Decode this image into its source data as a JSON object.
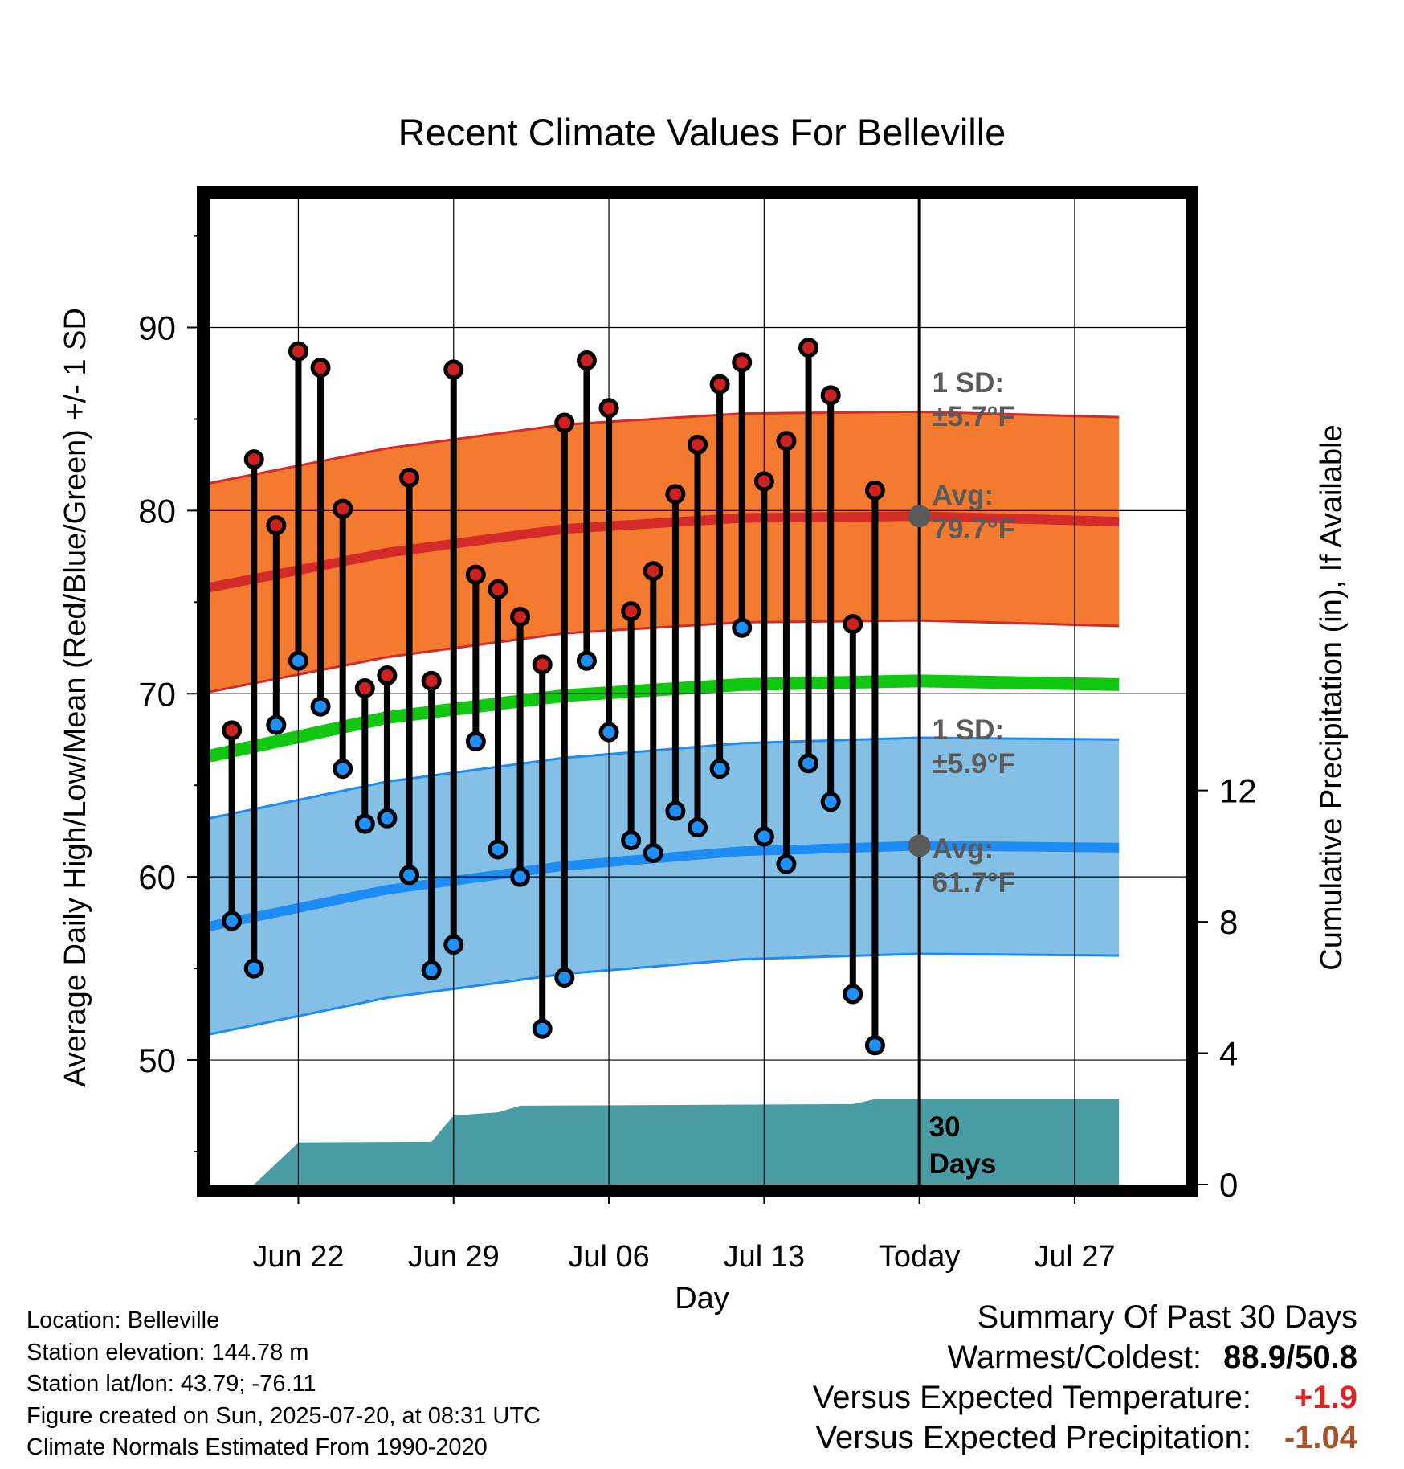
{
  "chart_data": {
    "type": "line",
    "title": "Recent Climate Values For Belleville",
    "xlabel": "Day",
    "ylabel": "Average Daily High/Low/Mean (Red/Blue/Green) +/- 1 SD",
    "y2label": "Cumulative Precipitation (in), If Available",
    "x_range_days": [
      -1,
      43
    ],
    "ylim": [
      43.2,
      97
    ],
    "y2lim": [
      0,
      30
    ],
    "x_ticks": [
      {
        "day": 3,
        "label": "Jun 22"
      },
      {
        "day": 10,
        "label": "Jun 29"
      },
      {
        "day": 17,
        "label": "Jul 06"
      },
      {
        "day": 24,
        "label": "Jul 13"
      },
      {
        "day": 31,
        "label": "Today"
      },
      {
        "day": 38,
        "label": "Jul 27"
      }
    ],
    "y_ticks": [
      50,
      60,
      70,
      80,
      90
    ],
    "y2_ticks": [
      0,
      4,
      8,
      12
    ],
    "today_day": 31,
    "grid": true,
    "daily_high": [
      68.0,
      82.8,
      79.2,
      88.7,
      87.8,
      80.1,
      70.3,
      71.0,
      81.8,
      70.7,
      87.7,
      76.5,
      75.7,
      74.2,
      71.6,
      84.8,
      88.2,
      85.6,
      74.5,
      76.7,
      80.9,
      83.6,
      86.9,
      88.1,
      81.6,
      83.8,
      88.9,
      86.3,
      73.8,
      81.1
    ],
    "daily_low": [
      57.6,
      55.0,
      68.3,
      71.8,
      69.3,
      65.9,
      62.9,
      63.2,
      60.1,
      54.9,
      56.3,
      67.4,
      61.5,
      60.0,
      51.7,
      54.5,
      71.8,
      67.9,
      62.0,
      61.3,
      63.6,
      62.7,
      65.9,
      73.6,
      62.2,
      60.7,
      66.2,
      64.1,
      53.6,
      50.8
    ],
    "normal_high": [
      {
        "day": -1,
        "value": 75.8
      },
      {
        "day": 7,
        "value": 77.7
      },
      {
        "day": 15,
        "value": 79.0
      },
      {
        "day": 23,
        "value": 79.6
      },
      {
        "day": 31,
        "value": 79.7
      },
      {
        "day": 40,
        "value": 79.4
      }
    ],
    "normal_low": [
      {
        "day": -1,
        "value": 57.3
      },
      {
        "day": 7,
        "value": 59.3
      },
      {
        "day": 15,
        "value": 60.6
      },
      {
        "day": 23,
        "value": 61.4
      },
      {
        "day": 31,
        "value": 61.7
      },
      {
        "day": 40,
        "value": 61.6
      }
    ],
    "normal_mean": [
      {
        "day": -1,
        "value": 66.6
      },
      {
        "day": 7,
        "value": 68.7
      },
      {
        "day": 15,
        "value": 69.9
      },
      {
        "day": 23,
        "value": 70.5
      },
      {
        "day": 31,
        "value": 70.7
      },
      {
        "day": 40,
        "value": 70.5
      }
    ],
    "high_sd": 5.7,
    "low_sd": 5.9,
    "cumulative_precip": [
      {
        "day": -1,
        "value": 0
      },
      {
        "day": 1,
        "value": 0
      },
      {
        "day": 3,
        "value": 1.28
      },
      {
        "day": 9,
        "value": 1.3
      },
      {
        "day": 10,
        "value": 2.1
      },
      {
        "day": 12,
        "value": 2.2
      },
      {
        "day": 13,
        "value": 2.4
      },
      {
        "day": 28,
        "value": 2.45
      },
      {
        "day": 29,
        "value": 2.6
      },
      {
        "day": 40,
        "value": 2.6
      }
    ],
    "colors": {
      "high_band": "#f47a30",
      "high_line": "#d42a2a",
      "low_band": "#84c0e6",
      "low_line": "#1e8cf5",
      "mean_line": "#11c811",
      "precip": "#4a9ca4",
      "annotation": "#5a5a5a",
      "high_dot": "#cc2222",
      "low_dot": "#1e90ff"
    },
    "annotations": {
      "high_sd_label": "1 SD:",
      "high_sd_value": "±5.7°F",
      "high_avg_label": "Avg:",
      "high_avg_value": "79.7°F",
      "low_sd_label": "1 SD:",
      "low_sd_value": "±5.9°F",
      "low_avg_label": "Avg:",
      "low_avg_value": "61.7°F",
      "days_label_1": "30",
      "days_label_2": "Days"
    }
  },
  "station_info": [
    "Location: Belleville",
    "Station elevation: 144.78 m",
    "Station lat/lon: 43.79; -76.11",
    "Figure created on Sun, 2025-07-20, at 08:31 UTC",
    "Climate Normals Estimated From 1990-2020"
  ],
  "summary": {
    "title": "Summary Of Past 30 Days",
    "warmest_coldest_label": "Warmest/Coldest:",
    "warmest_coldest_value": "88.9/50.8",
    "temp_label": "Versus Expected Temperature:",
    "temp_value": "+1.9",
    "temp_color": "#dd2222",
    "precip_label": "Versus Expected Precipitation:",
    "precip_value": "-1.04",
    "precip_color": "#a8522a"
  }
}
